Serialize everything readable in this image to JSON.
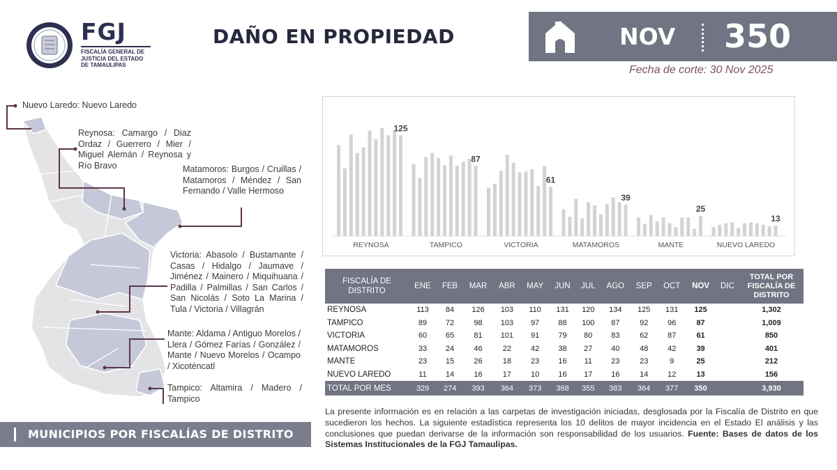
{
  "header": {
    "logo_acronym": "FGJ",
    "logo_subtitle": "FISCALÍA GENERAL DE\nJUSTICIA DEL ESTADO\nDE TAMAULIPAS",
    "title": "DAÑO EN PROPIEDAD",
    "month": "NOV",
    "month_total": "350",
    "cutoff": "Fecha de corte: 30 Nov 2025",
    "icon": "home-icon"
  },
  "map": {
    "labels": [
      "Nuevo Laredo: Nuevo Laredo",
      "Reynosa: Camargo / Diaz Ordaz / Guerrero / Mier / Miguel Alemán / Reynosa y Río Bravo",
      "Matamoros: Burgos / Cruillas / Matamoros / Méndez / San Fernando / Valle Hermoso",
      "Victoria: Abasolo / Bustamante / Casas / Hidalgo / Jaumave / Jiménez / Mainero / Miquihuana / Padilla / Palmillas / San Carlos / San Nicolás / Soto La Marina / Tula / Victoria / Villagrán",
      "Mante: Aldama / Antiguo Morelos / Llera / Gómez Farías / González / Mante / Nuevo Morelos / Ocampo / Xicoténcatl",
      "Tampico: Altamira / Madero / Tampico"
    ],
    "footer": "MUNICIPIOS POR FISCALÍAS DE DISTRITO"
  },
  "table": {
    "district_header": "FISCALÍA DE DISTRITO",
    "months": [
      "ENE",
      "FEB",
      "MAR",
      "ABR",
      "MAY",
      "JUN",
      "JUL",
      "AGO",
      "SEP",
      "OCT",
      "NOV",
      "DIC"
    ],
    "total_header": "TOTAL POR FISCALÍA DE DISTRITO",
    "rows": [
      {
        "name": "REYNOSA",
        "values": [
          "113",
          "84",
          "126",
          "103",
          "110",
          "131",
          "120",
          "134",
          "125",
          "131",
          "125",
          ""
        ],
        "total": "1,302"
      },
      {
        "name": "TAMPICO",
        "values": [
          "89",
          "72",
          "98",
          "103",
          "97",
          "88",
          "100",
          "87",
          "92",
          "96",
          "87",
          ""
        ],
        "total": "1,009"
      },
      {
        "name": "VICTORIA",
        "values": [
          "60",
          "65",
          "81",
          "101",
          "91",
          "79",
          "80",
          "83",
          "62",
          "87",
          "61",
          ""
        ],
        "total": "850"
      },
      {
        "name": "MATAMOROS",
        "values": [
          "33",
          "24",
          "46",
          "22",
          "42",
          "38",
          "27",
          "40",
          "48",
          "42",
          "39",
          ""
        ],
        "total": "401"
      },
      {
        "name": "MANTE",
        "values": [
          "23",
          "15",
          "26",
          "18",
          "23",
          "16",
          "11",
          "23",
          "23",
          "9",
          "25",
          ""
        ],
        "total": "212"
      },
      {
        "name": "NUEVO LAREDO",
        "values": [
          "11",
          "14",
          "16",
          "17",
          "10",
          "16",
          "17",
          "16",
          "14",
          "12",
          "13",
          ""
        ],
        "total": "156"
      }
    ],
    "footer": {
      "name": "TOTAL POR MES",
      "values": [
        "329",
        "274",
        "393",
        "364",
        "373",
        "368",
        "355",
        "383",
        "364",
        "377",
        "350",
        ""
      ],
      "total": "3,930"
    }
  },
  "note": {
    "text": "La presente información es en relación a las carpetas de investigación iniciadas, desglosada por la Fiscalía de Distrito en que sucedieron los hechos. La siguiente estadística representa los 10 delitos de mayor incidencia en el Estado El análisis y las conclusiones que puedan derivarse de la información son responsabilidad de los usuarios.",
    "source": "Fuente: Bases de datos de los Sistemas Institucionales de la FGJ Tamaulipas."
  },
  "chart_data": {
    "type": "bar",
    "months": [
      "ENE",
      "FEB",
      "MAR",
      "ABR",
      "MAY",
      "JUN",
      "JUL",
      "AGO",
      "SEP",
      "OCT",
      "NOV",
      "DIC"
    ],
    "groups": [
      {
        "name": "REYNOSA",
        "values": [
          113,
          84,
          126,
          103,
          110,
          131,
          120,
          134,
          125,
          131,
          125
        ],
        "label": "125"
      },
      {
        "name": "TAMPICO",
        "values": [
          89,
          72,
          98,
          103,
          97,
          88,
          100,
          87,
          92,
          96,
          87
        ],
        "label": "87"
      },
      {
        "name": "VICTORIA",
        "values": [
          60,
          65,
          81,
          101,
          91,
          79,
          80,
          83,
          62,
          87,
          61
        ],
        "label": "61"
      },
      {
        "name": "MATAMOROS",
        "values": [
          33,
          24,
          46,
          22,
          42,
          38,
          27,
          40,
          48,
          42,
          39
        ],
        "label": "39"
      },
      {
        "name": "MANTE",
        "values": [
          23,
          15,
          26,
          18,
          23,
          16,
          11,
          23,
          23,
          9,
          25
        ],
        "label": "25"
      },
      {
        "name": "NUEVO LAREDO",
        "values": [
          11,
          14,
          16,
          17,
          10,
          16,
          17,
          16,
          14,
          12,
          13
        ],
        "label": "13"
      }
    ],
    "ylim": [
      0,
      140
    ],
    "bar_color": "#d3d3d3",
    "grid": false
  },
  "colors": {
    "banner": "#707483",
    "map_region": "#c4c8d9",
    "map_other": "#e4e4e7",
    "leader": "#5a3648",
    "cutoff": "#7b5060"
  }
}
